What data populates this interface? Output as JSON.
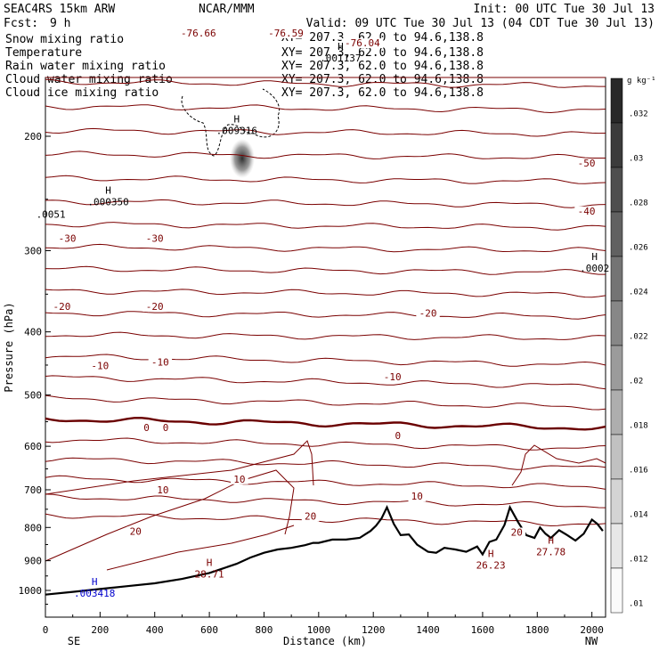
{
  "header": {
    "model": "SEAC4RS 15km ARW",
    "org": "NCAR/MMM",
    "init": "Init: 00 UTC Tue 30 Jul 13",
    "fcst_label": "Fcst:",
    "fcst_value": "9 h",
    "valid": "Valid: 09 UTC Tue 30 Jul 13 (04 CDT Tue 30 Jul 13)"
  },
  "fields": [
    {
      "name": "Snow mixing ratio",
      "xy": "",
      "color": "#000000"
    },
    {
      "name": "Temperature",
      "xy": "XY= 207.3, 62.0 to 94.6,138.8",
      "color": "#cc0000"
    },
    {
      "name": "Rain water mixing ratio",
      "xy": "XY= 207.3, 62.0 to 94.6,138.8",
      "color": "#cc0000"
    },
    {
      "name": "Cloud water mixing ratio",
      "xy": "XY= 207.3, 62.0 to 94.6,138.8",
      "color": "#0000cc"
    },
    {
      "name": "Cloud ice mixing ratio",
      "xy": "XY= 207.3, 62.0 to 94.6,138.8",
      "color": "#000000"
    }
  ],
  "header_xy_first": "XY= 207.3, 62.0 to 94.6,138.8",
  "colors": {
    "temperature": "#7a0000",
    "zero_isotherm": "#6a0000",
    "terrain": "#000000",
    "cloud_water": "#0000cc",
    "cloud_ice": "#000000"
  },
  "axes": {
    "x_label": "Distance (km)",
    "y_label": "Pressure (hPa)",
    "x_left_label": "SE",
    "x_right_label": "NW",
    "x_ticks": [
      "0",
      "200",
      "400",
      "600",
      "800",
      "1000",
      "1200",
      "1400",
      "1600",
      "1800",
      "2000"
    ],
    "y_ticks": [
      "200",
      "300",
      "400",
      "500",
      "600",
      "700",
      "800",
      "900",
      "1000"
    ]
  },
  "colorbar": {
    "unit": "g kg⁻¹",
    "labels": [
      ".032",
      ".03",
      ".028",
      ".026",
      ".024",
      ".022",
      ".02",
      ".018",
      ".016",
      ".014",
      ".012",
      ".01"
    ]
  },
  "chart_data": {
    "type": "line",
    "title": "SEAC4RS 15km ARW",
    "xlabel": "Distance (km)",
    "ylabel": "Pressure (hPa)",
    "xlim": [
      0,
      2050
    ],
    "ylim": [
      1050,
      100
    ],
    "y_scale": "log",
    "isotherm_labels": [
      {
        "value": "-76.66",
        "x": 560,
        "p": 140
      },
      {
        "value": "-76.59",
        "x": 880,
        "p": 140
      },
      {
        "value": "-76.04",
        "x": 1160,
        "p": 145
      },
      {
        "value": "-50",
        "x": 1980,
        "p": 222
      },
      {
        "value": "-40",
        "x": 1980,
        "p": 263
      },
      {
        "value": "-30",
        "x": 80,
        "p": 290
      },
      {
        "value": "-30",
        "x": 400,
        "p": 290
      },
      {
        "value": "-20",
        "x": 60,
        "p": 369
      },
      {
        "value": "-20",
        "x": 400,
        "p": 369
      },
      {
        "value": "-20",
        "x": 1400,
        "p": 378
      },
      {
        "value": "-10",
        "x": 200,
        "p": 455
      },
      {
        "value": "-10",
        "x": 420,
        "p": 449
      },
      {
        "value": "-10",
        "x": 1270,
        "p": 473
      },
      {
        "value": "0",
        "x": 370,
        "p": 567
      },
      {
        "value": "0",
        "x": 440,
        "p": 567
      },
      {
        "value": "0",
        "x": 1290,
        "p": 583
      },
      {
        "value": "10",
        "x": 430,
        "p": 707
      },
      {
        "value": "10",
        "x": 710,
        "p": 680
      },
      {
        "value": "10",
        "x": 1360,
        "p": 723
      },
      {
        "value": "20",
        "x": 330,
        "p": 818
      },
      {
        "value": "20",
        "x": 970,
        "p": 776
      },
      {
        "value": "20",
        "x": 1725,
        "p": 821
      }
    ],
    "maxima": [
      {
        "label": "H",
        "value": ".001137",
        "x": 1080,
        "p": 150
      },
      {
        "label": "H",
        "value": ".009316",
        "x": 700,
        "p": 194
      },
      {
        "label": "H",
        "value": ".000350",
        "x": 230,
        "p": 250
      },
      {
        "label": "",
        "value": ".0051",
        "x": 20,
        "p": 261
      },
      {
        "label": "H",
        "value": ".0002",
        "x": 2010,
        "p": 316
      },
      {
        "label": "H",
        "value": "28.71",
        "x": 600,
        "p": 935
      },
      {
        "label": "H",
        "value": "26.23",
        "x": 1630,
        "p": 905
      },
      {
        "label": "H",
        "value": "27.78",
        "x": 1850,
        "p": 863
      },
      {
        "label": "H",
        "value": ".003418",
        "x": 180,
        "p": 1000
      }
    ],
    "terrain_surface_pressure": {
      "x": [
        0,
        100,
        200,
        300,
        400,
        500,
        550,
        600,
        650,
        700,
        750,
        800,
        850,
        900,
        950,
        980,
        1000,
        1050,
        1100,
        1150,
        1170,
        1190,
        1210,
        1230,
        1250,
        1275,
        1300,
        1330,
        1360,
        1400,
        1430,
        1460,
        1500,
        1540,
        1580,
        1600,
        1625,
        1650,
        1680,
        1700,
        1730,
        1760,
        1790,
        1810,
        1830,
        1850,
        1880,
        1910,
        1940,
        1970,
        2000,
        2020,
        2040
      ],
      "p": [
        1015,
        1005,
        995,
        985,
        975,
        960,
        950,
        940,
        925,
        910,
        890,
        875,
        865,
        860,
        852,
        845,
        845,
        835,
        835,
        830,
        820,
        810,
        795,
        775,
        745,
        790,
        822,
        820,
        850,
        872,
        875,
        860,
        865,
        872,
        856,
        880,
        842,
        835,
        793,
        745,
        785,
        822,
        830,
        800,
        818,
        830,
        808,
        822,
        838,
        818,
        778,
        790,
        810
      ]
    }
  }
}
